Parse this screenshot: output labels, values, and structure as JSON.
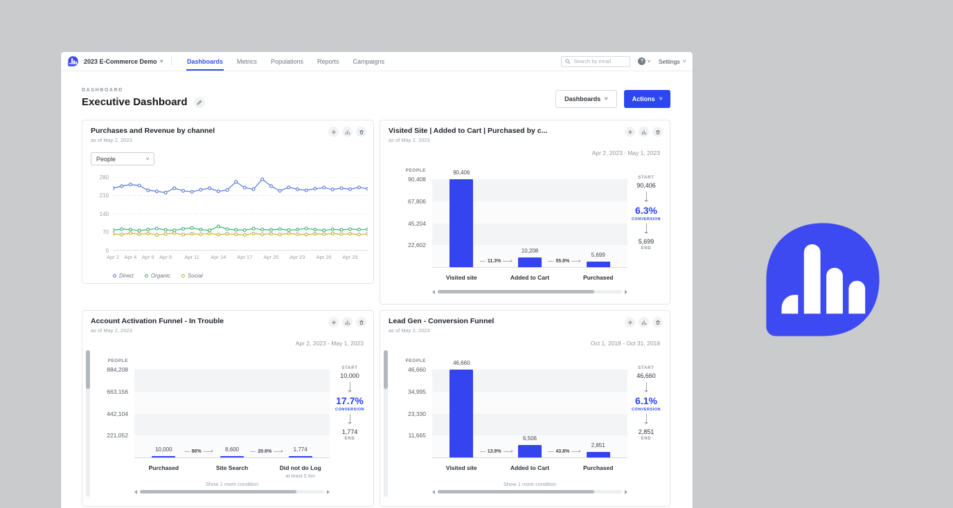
{
  "colors": {
    "page_bg": "#c9cbcd",
    "brand_blue": "#3d4af2",
    "accent_blue": "#2c47ef",
    "funnel_bar_blue": "#3444ef"
  },
  "topbar": {
    "workspace_label": "2023 E-Commerce Demo",
    "nav_items": [
      {
        "label": "Dashboards",
        "active": true
      },
      {
        "label": "Metrics",
        "active": false
      },
      {
        "label": "Populations",
        "active": false
      },
      {
        "label": "Reports",
        "active": false
      },
      {
        "label": "Campaigns",
        "active": false
      }
    ],
    "search_placeholder": "Search by email",
    "help_label": "?",
    "settings_label": "Settings"
  },
  "header": {
    "eyebrow": "DASHBOARD",
    "title": "Executive Dashboard",
    "dashboards_button": "Dashboards",
    "actions_button": "Actions"
  },
  "cards": {
    "purchases": {
      "title": "Purchases and Revenue by channel",
      "as_of": "as of May 2, 2023",
      "selector_value": "People",
      "chart_data": {
        "type": "line",
        "title": "Purchases and Revenue by channel",
        "ylim": [
          0,
          280
        ],
        "y_ticks": [
          0,
          70,
          140,
          210,
          280
        ],
        "x_ticks": [
          "Apr 2",
          "Apr 4",
          "Apr 6",
          "Apr 8",
          "Apr 11",
          "Apr 14",
          "Apr 17",
          "Apr 20",
          "Apr 23",
          "Apr 26",
          "Apr 29"
        ],
        "x_tick_indices": [
          0,
          2,
          4,
          6,
          9,
          12,
          15,
          18,
          21,
          24,
          27
        ],
        "n_points": 30,
        "grid": "dotted",
        "legend_position": "bottom",
        "series": [
          {
            "name": "Direct",
            "color": "#5377dd",
            "values": [
              238,
              246,
              252,
              248,
              230,
              226,
              221,
              238,
              228,
              224,
              232,
              238,
              226,
              231,
              262,
              240,
              234,
              272,
              246,
              228,
              241,
              234,
              230,
              236,
              240,
              233,
              238,
              234,
              241,
              236
            ]
          },
          {
            "name": "Organic",
            "color": "#30b273",
            "values": [
              78,
              82,
              80,
              76,
              80,
              84,
              79,
              77,
              83,
              86,
              80,
              77,
              92,
              82,
              79,
              78,
              84,
              80,
              79,
              82,
              78,
              80,
              84,
              80,
              77,
              81,
              79,
              82,
              80,
              81
            ]
          },
          {
            "name": "Social",
            "color": "#c2b02c",
            "values": [
              64,
              61,
              66,
              62,
              65,
              60,
              63,
              66,
              61,
              64,
              62,
              65,
              61,
              63,
              62,
              60,
              65,
              62,
              64,
              61,
              65,
              62,
              61,
              64,
              62,
              65,
              62,
              64,
              61,
              63
            ]
          }
        ]
      }
    },
    "visited": {
      "title": "Visited Site | Added to Cart | Purchased by c...",
      "as_of": "as of May 2, 2023",
      "date_range": "Apr 2, 2023 - May 1, 2023",
      "chart_data": {
        "type": "bar",
        "axis_label": "PEOPLE",
        "y_tick_labels": [
          "90,408",
          "67,806",
          "45,204",
          "22,602"
        ],
        "y_max": 90408,
        "categories": [
          "Visited site",
          "Added to Cart",
          "Purchased"
        ],
        "category_sublabels": [
          "",
          "",
          ""
        ],
        "values": [
          90406,
          10208,
          5699
        ],
        "value_labels": [
          "90,406",
          "10,208",
          "5,699"
        ],
        "conversions": [
          "11.3%",
          "55.8%"
        ]
      },
      "stats": {
        "start_label": "START",
        "start": "90,406",
        "rate": "6.3%",
        "rate_label": "CONVERSION",
        "end": "5,699",
        "end_label": "END"
      }
    },
    "activation": {
      "title": "Account Activation Funnel - In Trouble",
      "as_of": "as of May 2, 2023",
      "date_range": "Apr 2, 2023 - May 1, 2023",
      "chart_data": {
        "type": "bar",
        "axis_label": "PEOPLE",
        "y_tick_labels": [
          "884,208",
          "663,156",
          "442,104",
          "221,052"
        ],
        "y_max": 884208,
        "categories": [
          "Purchased",
          "Site Search",
          "Did not do Log"
        ],
        "category_sublabels": [
          "",
          "",
          "at least 5 tim"
        ],
        "values": [
          10000,
          8600,
          1774
        ],
        "value_labels": [
          "10,000",
          "8,600",
          "1,774"
        ],
        "conversions": [
          "86%",
          "20.6%"
        ]
      },
      "stats": {
        "start_label": "START",
        "start": "10,000",
        "rate": "17.7%",
        "rate_label": "CONVERSION",
        "end": "1,774",
        "end_label": "END"
      },
      "footnote": "Show 1 more condition"
    },
    "leadgen": {
      "title": "Lead Gen - Conversion Funnel",
      "as_of": "as of May 2, 2023",
      "date_range": "Oct 1, 2018 - Oct 31, 2018",
      "chart_data": {
        "type": "bar",
        "axis_label": "PEOPLE",
        "y_tick_labels": [
          "46,660",
          "34,995",
          "23,330",
          "11,665"
        ],
        "y_max": 46660,
        "categories": [
          "Visited site",
          "Added to Cart",
          "Purchased"
        ],
        "category_sublabels": [
          "",
          "",
          ""
        ],
        "values": [
          46660,
          6506,
          2851
        ],
        "value_labels": [
          "46,660",
          "6,506",
          "2,851"
        ],
        "conversions": [
          "13.9%",
          "43.8%"
        ]
      },
      "stats": {
        "start_label": "START",
        "start": "46,660",
        "rate": "6.1%",
        "rate_label": "CONVERSION",
        "end": "2,851",
        "end_label": "END"
      },
      "footnote": "Show 1 more condition"
    }
  }
}
